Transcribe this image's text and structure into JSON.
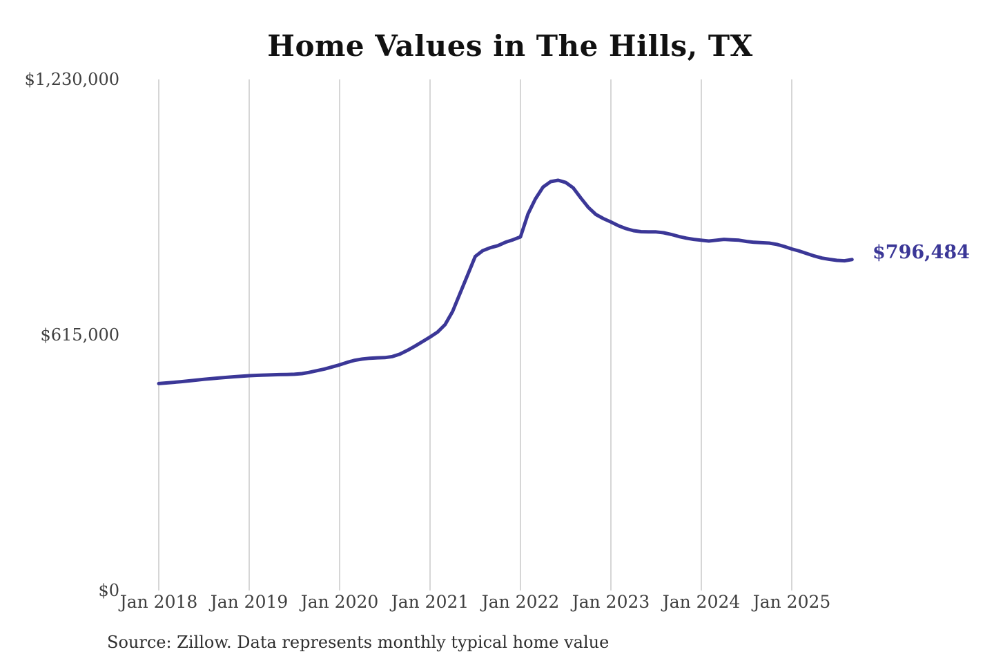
{
  "page": {
    "source_note": "Source: Zillow. Data represents monthly typical home value"
  },
  "chart_data": {
    "type": "line",
    "title": "Home Values in The Hills, TX",
    "ylabel": "",
    "xlabel": "",
    "ylim": [
      0,
      1230000
    ],
    "grid": "vertical-only",
    "legend": "none",
    "x_start": "2018-01",
    "x_freq": "monthly",
    "series": [
      {
        "name": "Typical home value (USD)",
        "values": [
          498000,
          499500,
          501000,
          502700,
          504400,
          506300,
          508300,
          510000,
          511500,
          513000,
          514400,
          515800,
          517000,
          517800,
          518400,
          519000,
          519600,
          520000,
          520500,
          522000,
          525000,
          529000,
          533000,
          538000,
          543000,
          549000,
          554000,
          557000,
          559000,
          560000,
          560500,
          563000,
          569000,
          578000,
          588000,
          599000,
          610000,
          622000,
          640000,
          672000,
          716000,
          760000,
          804000,
          818000,
          825000,
          830000,
          838000,
          844000,
          851000,
          906000,
          943000,
          971000,
          984000,
          987400,
          982000,
          969000,
          945000,
          922000,
          905000,
          895000,
          887000,
          878000,
          871000,
          866000,
          863500,
          863000,
          863000,
          861000,
          857000,
          852000,
          848000,
          845000,
          843000,
          841000,
          843000,
          845000,
          844000,
          843000,
          840000,
          838000,
          837000,
          836000,
          833000,
          828000,
          822000,
          817000,
          811000,
          805000,
          800000,
          797000,
          794500,
          793500,
          796484
        ]
      }
    ],
    "y_ticks": [
      {
        "value": 0,
        "label": "$0"
      },
      {
        "value": 615000,
        "label": "$615,000"
      },
      {
        "value": 1230000,
        "label": "$1,230,000"
      }
    ],
    "x_ticks": [
      {
        "month_index": 0,
        "label": "Jan 2018"
      },
      {
        "month_index": 12,
        "label": "Jan 2019"
      },
      {
        "month_index": 24,
        "label": "Jan 2020"
      },
      {
        "month_index": 36,
        "label": "Jan 2021"
      },
      {
        "month_index": 48,
        "label": "Jan 2022"
      },
      {
        "month_index": 60,
        "label": "Jan 2023"
      },
      {
        "month_index": 72,
        "label": "Jan 2024"
      },
      {
        "month_index": 84,
        "label": "Jan 2025"
      }
    ],
    "end_label": "$796,484",
    "end_value": 796484,
    "colors": {
      "line": "#3b3797",
      "grid": "#c9c9c9",
      "tick_labels": "#3f3f3f",
      "title": "#111111",
      "source": "#2f2f2f",
      "background": "#ffffff"
    }
  }
}
